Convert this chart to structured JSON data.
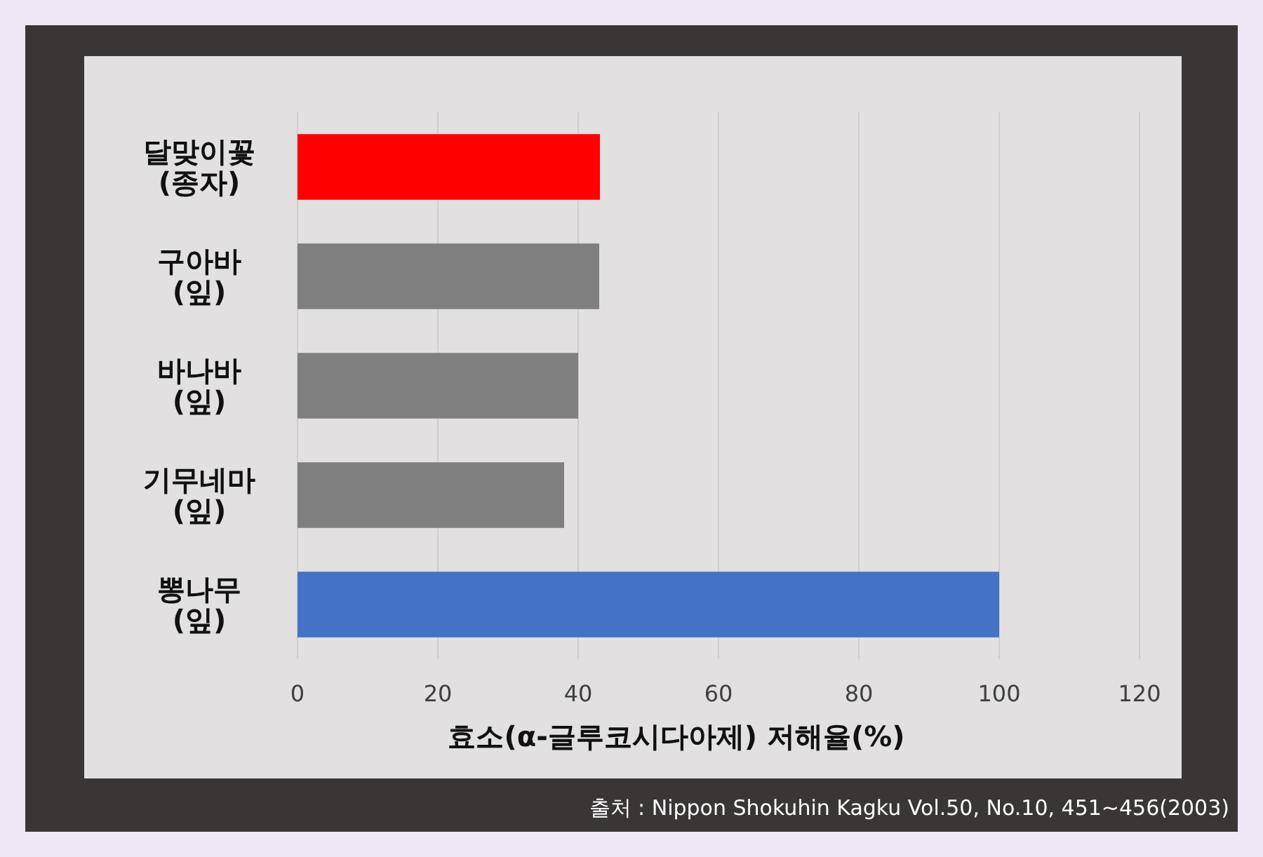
{
  "chart_data": {
    "type": "bar",
    "orientation": "horizontal",
    "xlabel": "효소(α-글루코시다아제) 저해율(%)",
    "categories": [
      "달맞이꽃\n(종자)",
      "구아바\n(잎)",
      "바나바\n(잎)",
      "기무네마\n(잎)",
      "뽕나무\n(잎)"
    ],
    "values": [
      43.1,
      43,
      40,
      38,
      100
    ],
    "colors": [
      "#ff0000",
      "#808080",
      "#808080",
      "#808080",
      "#4472c4"
    ],
    "xlim": [
      0,
      120
    ],
    "xticks": [
      0,
      20,
      40,
      60,
      80,
      100,
      120
    ],
    "grid": "x",
    "annotations": [
      "출처 : Nippon Shokuhin Kagku Vol.50,  No.10, 451~456(2003)"
    ]
  }
}
